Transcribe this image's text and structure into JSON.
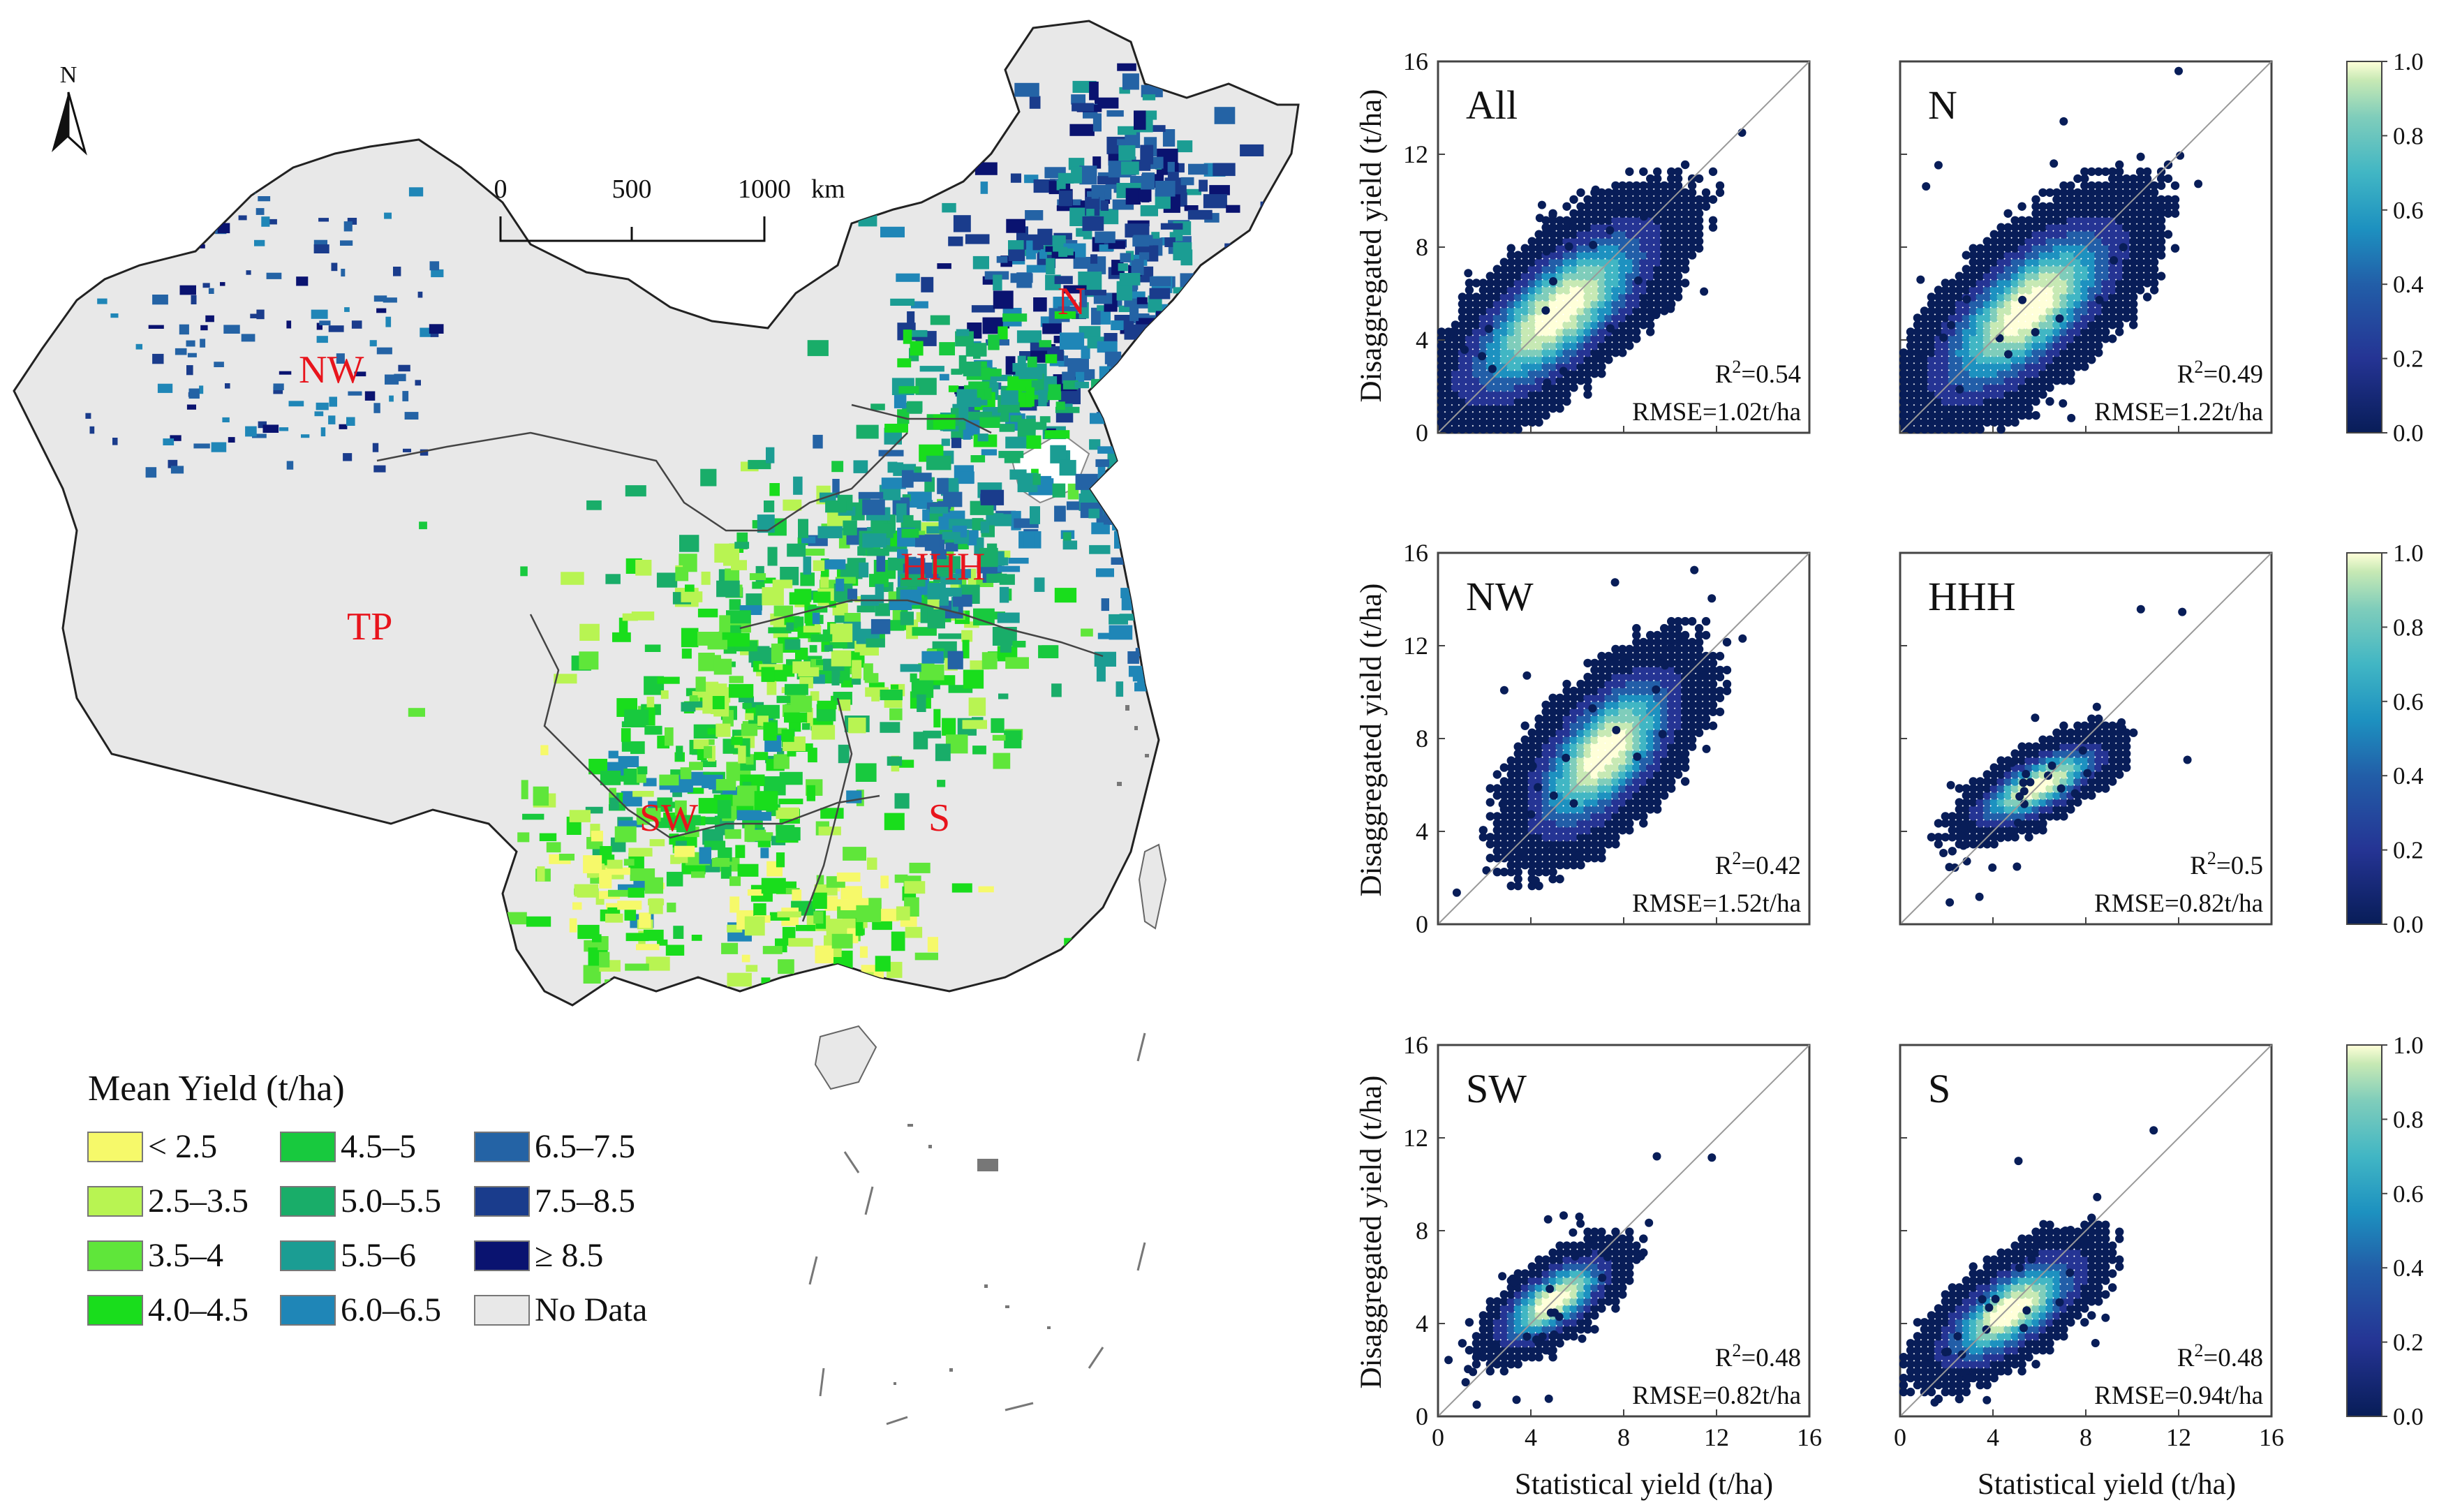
{
  "map": {
    "north_label": "N",
    "scale_ticks": [
      "0",
      "500",
      "1000"
    ],
    "scale_unit": "km",
    "regions": [
      {
        "id": "NW",
        "label": "NW"
      },
      {
        "id": "N",
        "label": "N"
      },
      {
        "id": "HHH",
        "label": "HHH"
      },
      {
        "id": "TP",
        "label": "TP"
      },
      {
        "id": "SW",
        "label": "SW"
      },
      {
        "id": "S",
        "label": "S"
      }
    ],
    "legend": {
      "title": "Mean Yield (t/ha)",
      "items": [
        {
          "label": "< 2.5",
          "color": "#f6f96a"
        },
        {
          "label": "2.5–3.5",
          "color": "#b8f452"
        },
        {
          "label": "3.5–4",
          "color": "#5fe63a"
        },
        {
          "label": "4.0–4.5",
          "color": "#19dd1c"
        },
        {
          "label": "4.5–5",
          "color": "#18c93e"
        },
        {
          "label": "5.0–5.5",
          "color": "#19ad69"
        },
        {
          "label": "5.5–6",
          "color": "#1b9d93"
        },
        {
          "label": "6.0–6.5",
          "color": "#1f86b7"
        },
        {
          "label": "6.5–7.5",
          "color": "#2463a5"
        },
        {
          "label": "7.5–8.5",
          "color": "#1a3c8c"
        },
        {
          "label": "≥ 8.5",
          "color": "#0a1370"
        },
        {
          "label": "No Data",
          "color": "#e8e8e8"
        }
      ]
    }
  },
  "chart_data": {
    "type": "scatter",
    "subtype": "hexbin density",
    "xlabel": "Statistical yield (t/ha)",
    "ylabel": "Disaggregated yield (t/ha)",
    "xlim": [
      0,
      16
    ],
    "ylim": [
      0,
      16
    ],
    "ticks": [
      "0",
      "4",
      "8",
      "12",
      "16"
    ],
    "colorbar": {
      "range": [
        0,
        1
      ],
      "ticks": [
        "0.0",
        "0.2",
        "0.4",
        "0.6",
        "0.8",
        "1.0"
      ]
    },
    "panels": [
      {
        "name": "All",
        "r2_prefix": "R",
        "r2_sup": "2",
        "r2_value": "=0.54",
        "rmse": "RMSE=1.02t/ha",
        "center": [
          5.2,
          5.2
        ],
        "spread_x": 2.6,
        "spread_y": 2.4,
        "corr": 0.72
      },
      {
        "name": "N",
        "r2_prefix": "R",
        "r2_sup": "2",
        "r2_value": "=0.49",
        "rmse": "RMSE=1.22t/ha",
        "center": [
          5.5,
          5.3
        ],
        "spread_x": 2.5,
        "spread_y": 2.4,
        "corr": 0.68
      },
      {
        "name": "NW",
        "r2_prefix": "R",
        "r2_sup": "2",
        "r2_value": "=0.42",
        "rmse": "RMSE=1.52t/ha",
        "center": [
          7.2,
          7.4
        ],
        "spread_x": 2.0,
        "spread_y": 2.2,
        "corr": 0.62
      },
      {
        "name": "HHH",
        "r2_prefix": "R",
        "r2_sup": "2",
        "r2_value": "=0.5",
        "rmse": "RMSE=0.82t/ha",
        "center": [
          6.0,
          6.0
        ],
        "spread_x": 1.7,
        "spread_y": 1.1,
        "corr": 0.7
      },
      {
        "name": "SW",
        "r2_prefix": "R",
        "r2_sup": "2",
        "r2_value": "=0.48",
        "rmse": "RMSE=0.82t/ha",
        "center": [
          5.0,
          5.0
        ],
        "spread_x": 1.5,
        "spread_y": 1.2,
        "corr": 0.68
      },
      {
        "name": "S",
        "r2_prefix": "R",
        "r2_sup": "2",
        "r2_value": "=0.48",
        "rmse": "RMSE=0.94t/ha",
        "center": [
          4.8,
          4.6
        ],
        "spread_x": 1.9,
        "spread_y": 1.5,
        "corr": 0.68
      }
    ]
  }
}
